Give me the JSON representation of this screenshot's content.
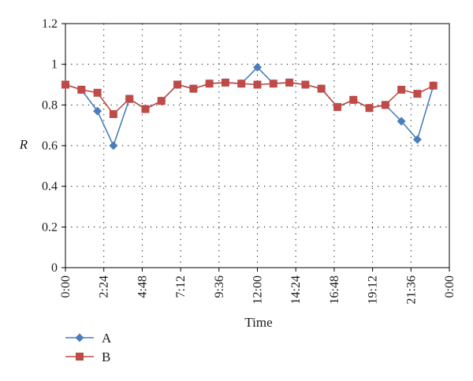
{
  "chart_data": {
    "type": "line",
    "xlabel": "Time",
    "ylabel": "R",
    "ylim": [
      0,
      1.2
    ],
    "yticks": [
      "0",
      "0.2",
      "0.4",
      "0.6",
      "0.8",
      "1",
      "1.2"
    ],
    "xticks": [
      "0:00",
      "2:24",
      "4:48",
      "7:12",
      "9:36",
      "12:00",
      "14:24",
      "16:48",
      "19:12",
      "21:36",
      "0:00"
    ],
    "x": [
      "0:00",
      "1:00",
      "2:00",
      "3:00",
      "4:00",
      "5:00",
      "6:00",
      "7:00",
      "8:00",
      "9:00",
      "10:00",
      "11:00",
      "12:00",
      "13:00",
      "14:00",
      "15:00",
      "16:00",
      "17:00",
      "18:00",
      "19:00",
      "20:00",
      "21:00",
      "22:00",
      "23:00"
    ],
    "grid": true,
    "legend_position": "bottom-left",
    "series": [
      {
        "name": "A",
        "color": "#4a7ebb",
        "marker": "diamond",
        "values": [
          0.9,
          0.875,
          0.77,
          0.6,
          0.83,
          0.78,
          0.82,
          0.9,
          0.88,
          0.905,
          0.91,
          0.905,
          0.985,
          0.905,
          0.91,
          0.9,
          0.88,
          0.79,
          0.825,
          0.785,
          0.8,
          0.72,
          0.63,
          0.895
        ]
      },
      {
        "name": "B",
        "color": "#be4b48",
        "marker": "square",
        "values": [
          0.9,
          0.875,
          0.86,
          0.755,
          0.83,
          0.78,
          0.82,
          0.9,
          0.88,
          0.905,
          0.91,
          0.905,
          0.9,
          0.905,
          0.91,
          0.9,
          0.88,
          0.79,
          0.825,
          0.785,
          0.8,
          0.875,
          0.855,
          0.895
        ]
      }
    ]
  }
}
